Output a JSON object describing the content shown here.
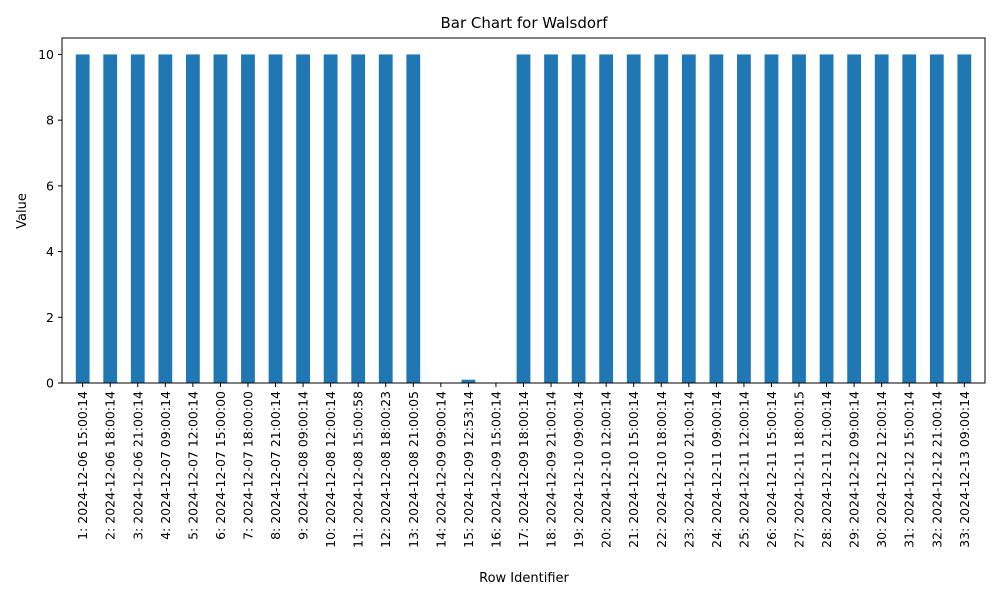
{
  "chart_data": {
    "type": "bar",
    "title": "Bar Chart for Walsdorf",
    "xlabel": "Row Identifier",
    "ylabel": "Value",
    "ylim": [
      0,
      10.5
    ],
    "yticks": [
      0,
      2,
      4,
      6,
      8,
      10
    ],
    "grid": false,
    "legend": "none",
    "bar_color": "#1f77b4",
    "categories": [
      "1: 2024-12-06 15:00:14",
      "2: 2024-12-06 18:00:14",
      "3: 2024-12-06 21:00:14",
      "4: 2024-12-07 09:00:14",
      "5: 2024-12-07 12:00:14",
      "6: 2024-12-07 15:00:00",
      "7: 2024-12-07 18:00:00",
      "8: 2024-12-07 21:00:14",
      "9: 2024-12-08 09:00:14",
      "10: 2024-12-08 12:00:14",
      "11: 2024-12-08 15:00:58",
      "12: 2024-12-08 18:00:23",
      "13: 2024-12-08 21:00:05",
      "14: 2024-12-09 09:00:14",
      "15: 2024-12-09 12:53:14",
      "16: 2024-12-09 15:00:14",
      "17: 2024-12-09 18:00:14",
      "18: 2024-12-09 21:00:14",
      "19: 2024-12-10 09:00:14",
      "20: 2024-12-10 12:00:14",
      "21: 2024-12-10 15:00:14",
      "22: 2024-12-10 18:00:14",
      "23: 2024-12-10 21:00:14",
      "24: 2024-12-11 09:00:14",
      "25: 2024-12-11 12:00:14",
      "26: 2024-12-11 15:00:14",
      "27: 2024-12-11 18:00:15",
      "28: 2024-12-11 21:00:14",
      "29: 2024-12-12 09:00:14",
      "30: 2024-12-12 12:00:14",
      "31: 2024-12-12 15:00:14",
      "32: 2024-12-12 21:00:14",
      "33: 2024-12-13 09:00:14"
    ],
    "values": [
      10,
      10,
      10,
      10,
      10,
      10,
      10,
      10,
      10,
      10,
      10,
      10,
      10,
      0,
      0.1,
      0,
      10,
      10,
      10,
      10,
      10,
      10,
      10,
      10,
      10,
      10,
      10,
      10,
      10,
      10,
      10,
      10,
      10
    ]
  }
}
